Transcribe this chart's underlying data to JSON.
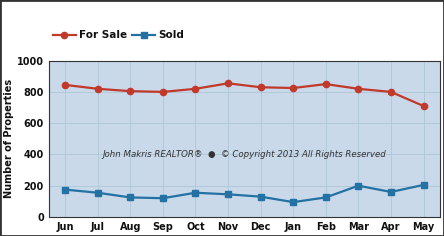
{
  "months": [
    "Jun",
    "Jul",
    "Aug",
    "Sep",
    "Oct",
    "Nov",
    "Dec",
    "Jan",
    "Feb",
    "Mar",
    "Apr",
    "May"
  ],
  "for_sale": [
    845,
    820,
    805,
    800,
    820,
    855,
    830,
    825,
    850,
    820,
    800,
    710
  ],
  "sold": [
    175,
    155,
    125,
    120,
    155,
    145,
    130,
    95,
    125,
    200,
    160,
    205
  ],
  "for_sale_color": "#c0392b",
  "sold_color": "#2471a3",
  "plot_bg_color": "#c9d9ea",
  "outer_bg": "#ffffff",
  "ylabel": "Number of Properties",
  "ylim": [
    0,
    1000
  ],
  "yticks": [
    0,
    200,
    400,
    600,
    800,
    1000
  ],
  "watermark": "John Makris REALTOR®  ●  © Copyright 2013 All Rights Reserved",
  "legend_for_sale": "For Sale",
  "legend_sold": "Sold",
  "border_color": "#333333",
  "grid_color": "#aec6d8",
  "tick_fontsize": 7,
  "ylabel_fontsize": 7,
  "legend_fontsize": 7.5,
  "watermark_fontsize": 6.2
}
